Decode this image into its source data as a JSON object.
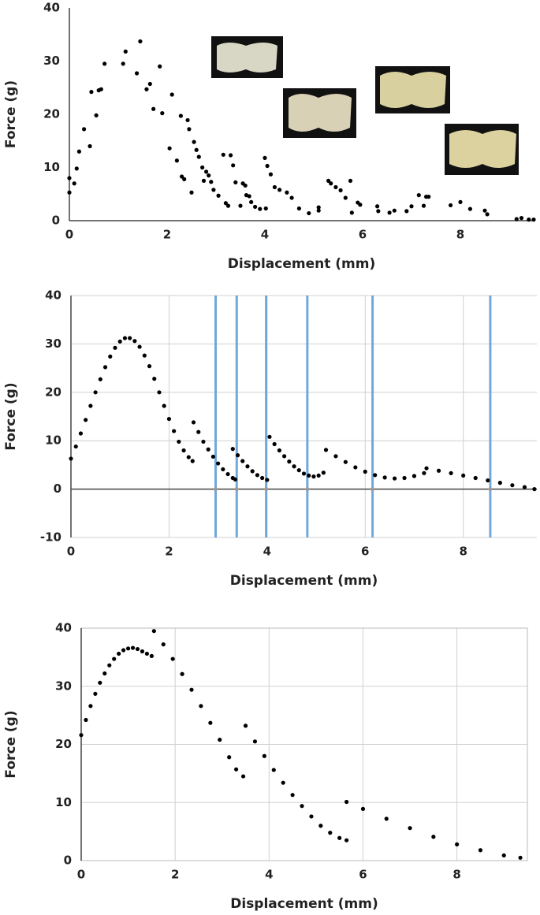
{
  "chart_data": [
    {
      "type": "scatter",
      "xlabel": "Displacement (mm)",
      "ylabel": "Force (g)",
      "xlim": [
        0,
        9.5
      ],
      "ylim": [
        0,
        40
      ],
      "xticks": [
        0,
        2,
        4,
        6,
        8
      ],
      "yticks": [
        0,
        10,
        20,
        30,
        40
      ],
      "grid": false,
      "color": "#000000",
      "x": [
        0,
        0,
        0.1,
        0.15,
        0.2,
        0.3,
        0.42,
        0.45,
        0.55,
        0.6,
        0.65,
        0.72,
        1.1,
        1.15,
        1.38,
        1.45,
        1.58,
        1.65,
        1.72,
        1.85,
        1.9,
        2.05,
        2.1,
        2.2,
        2.28,
        2.3,
        2.35,
        2.42,
        2.45,
        2.5,
        2.55,
        2.6,
        2.65,
        2.72,
        2.75,
        2.8,
        2.85,
        2.9,
        2.95,
        3.05,
        3.15,
        3.2,
        3.25,
        3.3,
        3.35,
        3.4,
        3.5,
        3.55,
        3.6,
        3.62,
        3.68,
        3.72,
        3.8,
        3.9,
        4.0,
        4.02,
        4.05,
        4.12,
        4.2,
        4.3,
        4.45,
        4.55,
        4.7,
        4.9,
        5.1,
        5.1,
        5.3,
        5.35,
        5.45,
        5.55,
        5.65,
        5.75,
        5.78,
        5.9,
        5.95,
        6.3,
        6.32,
        6.55,
        6.65,
        6.9,
        7.0,
        7.15,
        7.25,
        7.3,
        7.35,
        7.8,
        8.0,
        8.2,
        8.5,
        8.55,
        9.15,
        9.25,
        9.4,
        9.5
      ],
      "values": [
        8,
        5.3,
        7,
        9.8,
        13,
        17.2,
        14,
        24.2,
        19.8,
        24.5,
        24.7,
        29.5,
        29.5,
        31.8,
        27.7,
        33.7,
        24.7,
        25.7,
        21,
        29,
        20.2,
        13.6,
        23.7,
        11.3,
        19.7,
        8.3,
        7.8,
        18.9,
        17.2,
        5.3,
        14.8,
        13.3,
        12,
        10,
        7.5,
        9.2,
        8.5,
        7.3,
        5.8,
        4.7,
        12.4,
        3.3,
        2.8,
        12.3,
        10.4,
        7.2,
        2.8,
        7,
        6.6,
        4.8,
        4.6,
        3.5,
        2.6,
        2.2,
        11.8,
        2.3,
        10.3,
        8.7,
        6.3,
        5.8,
        5.3,
        4.3,
        2.3,
        1.4,
        1.9,
        2.5,
        7.5,
        7,
        6.3,
        5.7,
        4.3,
        7.5,
        1.5,
        3.4,
        3,
        2.7,
        1.8,
        1.5,
        1.9,
        1.8,
        2.7,
        4.8,
        2.8,
        4.5,
        4.5,
        2.9,
        3.5,
        2.2,
        1.9,
        1.2,
        0.3,
        0.5,
        0.2,
        0.2
      ]
    },
    {
      "type": "scatter",
      "xlabel": "Displacement (mm)",
      "ylabel": "Force (g)",
      "xlim": [
        0,
        9.5
      ],
      "ylim": [
        -10,
        40
      ],
      "xticks": [
        0,
        2,
        4,
        6,
        8
      ],
      "yticks": [
        -10,
        0,
        10,
        20,
        30,
        40
      ],
      "grid": true,
      "zero_line": true,
      "color": "#000000",
      "vlines": [
        2.95,
        3.38,
        3.98,
        4.82,
        6.15,
        8.55
      ],
      "vline_color": "#6fa8dc",
      "x": [
        0,
        0.1,
        0.2,
        0.3,
        0.4,
        0.5,
        0.6,
        0.7,
        0.8,
        0.9,
        1.0,
        1.1,
        1.2,
        1.3,
        1.4,
        1.5,
        1.6,
        1.7,
        1.8,
        1.9,
        2.0,
        2.1,
        2.2,
        2.3,
        2.4,
        2.48,
        2.5,
        2.6,
        2.7,
        2.8,
        2.9,
        3.0,
        3.1,
        3.2,
        3.3,
        3.35,
        3.3,
        3.4,
        3.5,
        3.6,
        3.7,
        3.8,
        3.9,
        4.0,
        4.05,
        4.15,
        4.25,
        4.35,
        4.45,
        4.55,
        4.65,
        4.75,
        4.85,
        4.95,
        5.05,
        5.15,
        5.2,
        5.4,
        5.6,
        5.8,
        6.0,
        6.2,
        6.4,
        6.6,
        6.8,
        7.0,
        7.2,
        7.25,
        7.5,
        7.75,
        8.0,
        8.25,
        8.5,
        8.75,
        9.0,
        9.25,
        9.45
      ],
      "values": [
        6.3,
        8.8,
        11.5,
        14.3,
        17.2,
        20,
        22.7,
        25.2,
        27.4,
        29.2,
        30.5,
        31.2,
        31.2,
        30.6,
        29.4,
        27.6,
        25.4,
        22.8,
        20,
        17.2,
        14.5,
        12,
        9.8,
        8,
        6.6,
        5.8,
        13.8,
        11.8,
        9.8,
        8.2,
        6.7,
        5.3,
        4.1,
        3.1,
        2.3,
        2.0,
        8.3,
        7.0,
        5.8,
        4.7,
        3.7,
        2.9,
        2.3,
        1.9,
        10.8,
        9.3,
        8.0,
        6.8,
        5.7,
        4.7,
        3.9,
        3.2,
        2.8,
        2.6,
        2.8,
        3.4,
        8.1,
        6.8,
        5.6,
        4.5,
        3.6,
        2.9,
        2.4,
        2.2,
        2.3,
        2.7,
        3.3,
        4.3,
        3.8,
        3.3,
        2.8,
        2.3,
        1.8,
        1.3,
        0.8,
        0.4,
        0
      ]
    },
    {
      "type": "scatter",
      "xlabel": "Displacement (mm)",
      "ylabel": "Force (g)",
      "xlim": [
        0,
        9.5
      ],
      "ylim": [
        0,
        40
      ],
      "xticks": [
        0,
        2,
        4,
        6,
        8
      ],
      "yticks": [
        0,
        10,
        20,
        30,
        40
      ],
      "grid": true,
      "color": "#000000",
      "x": [
        0,
        0.1,
        0.2,
        0.3,
        0.4,
        0.5,
        0.6,
        0.7,
        0.8,
        0.9,
        1.0,
        1.1,
        1.2,
        1.3,
        1.4,
        1.5,
        1.55,
        1.75,
        1.95,
        2.15,
        2.35,
        2.55,
        2.75,
        2.95,
        3.15,
        3.3,
        3.45,
        3.5,
        3.7,
        3.9,
        4.1,
        4.3,
        4.5,
        4.7,
        4.9,
        5.1,
        5.3,
        5.5,
        5.65,
        5.65,
        6.0,
        6.5,
        7.0,
        7.5,
        8.0,
        8.5,
        9.0,
        9.35
      ],
      "values": [
        21.6,
        24.2,
        26.6,
        28.7,
        30.6,
        32.2,
        33.6,
        34.7,
        35.6,
        36.2,
        36.5,
        36.6,
        36.4,
        36.0,
        35.6,
        35.2,
        39.5,
        37.2,
        34.7,
        32.1,
        29.4,
        26.6,
        23.7,
        20.8,
        17.8,
        15.7,
        14.5,
        23.2,
        20.5,
        18.0,
        15.6,
        13.4,
        11.3,
        9.4,
        7.6,
        6.0,
        4.8,
        3.9,
        3.5,
        10.1,
        8.9,
        7.2,
        5.6,
        4.1,
        2.8,
        1.8,
        0.9,
        0.5
      ]
    }
  ]
}
